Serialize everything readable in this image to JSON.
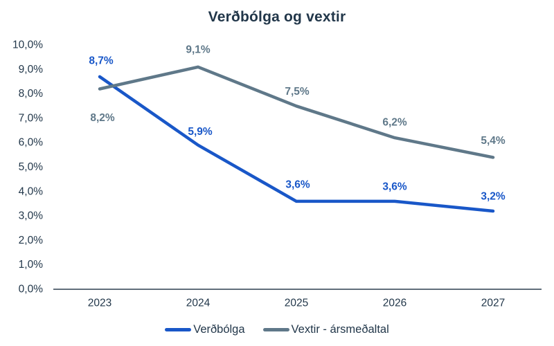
{
  "title": "Verðbólga og vextir",
  "chart_data": {
    "type": "line",
    "title": "Verðbólga og vextir",
    "categories": [
      "2023",
      "2024",
      "2025",
      "2026",
      "2027"
    ],
    "series": [
      {
        "name": "Verðbólga",
        "color": "#1957C8",
        "values": [
          8.7,
          5.9,
          3.6,
          3.6,
          3.2
        ],
        "labels": [
          "8,7%",
          "5,9%",
          "3,6%",
          "3,6%",
          "3,2%"
        ]
      },
      {
        "name": "Vextir - ársmeðaltal",
        "color": "#5F7889",
        "values": [
          8.2,
          9.1,
          7.5,
          6.2,
          5.4
        ],
        "labels": [
          "8,2%",
          "9,1%",
          "7,5%",
          "6,2%",
          "5,4%"
        ]
      }
    ],
    "ylim": [
      0,
      10
    ],
    "ytick_labels": [
      "0,0%",
      "1,0%",
      "2,0%",
      "3,0%",
      "4,0%",
      "5,0%",
      "6,0%",
      "7,0%",
      "8,0%",
      "9,0%",
      "10,0%"
    ],
    "grid": false,
    "legend_position": "bottom",
    "axis_text_color": "#22374A",
    "axis_line_color": "#2B3D4F",
    "background_color": "#FFFFFF"
  }
}
